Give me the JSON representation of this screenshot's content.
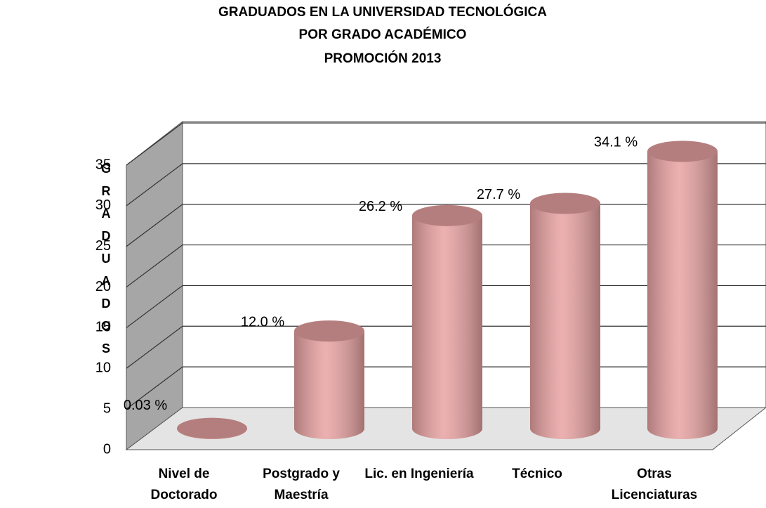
{
  "chart_data": {
    "type": "cylinder",
    "title": [
      "GRADUADOS EN LA UNIVERSIDAD TECNOLÓGICA",
      "POR GRADO ACADÉMICO",
      "PROMOCIÓN 2013"
    ],
    "y_label": "GRADUADOS",
    "categories": [
      "Nivel de Doctorado",
      "Postgrado y Maestría",
      "Lic. en Ingeniería",
      "Técnico",
      "Otras Licenciaturas"
    ],
    "values": [
      0.03,
      12.0,
      26.2,
      27.7,
      34.1
    ],
    "value_labels": [
      "0.03 %",
      "12.0 %",
      "26.2 %",
      "27.7 %",
      "34.1 %"
    ],
    "color": "#e8a2a2",
    "ylim": [
      0,
      35
    ],
    "yticks": [
      0,
      5,
      10,
      15,
      20,
      25,
      30,
      35
    ],
    "grid": true
  }
}
